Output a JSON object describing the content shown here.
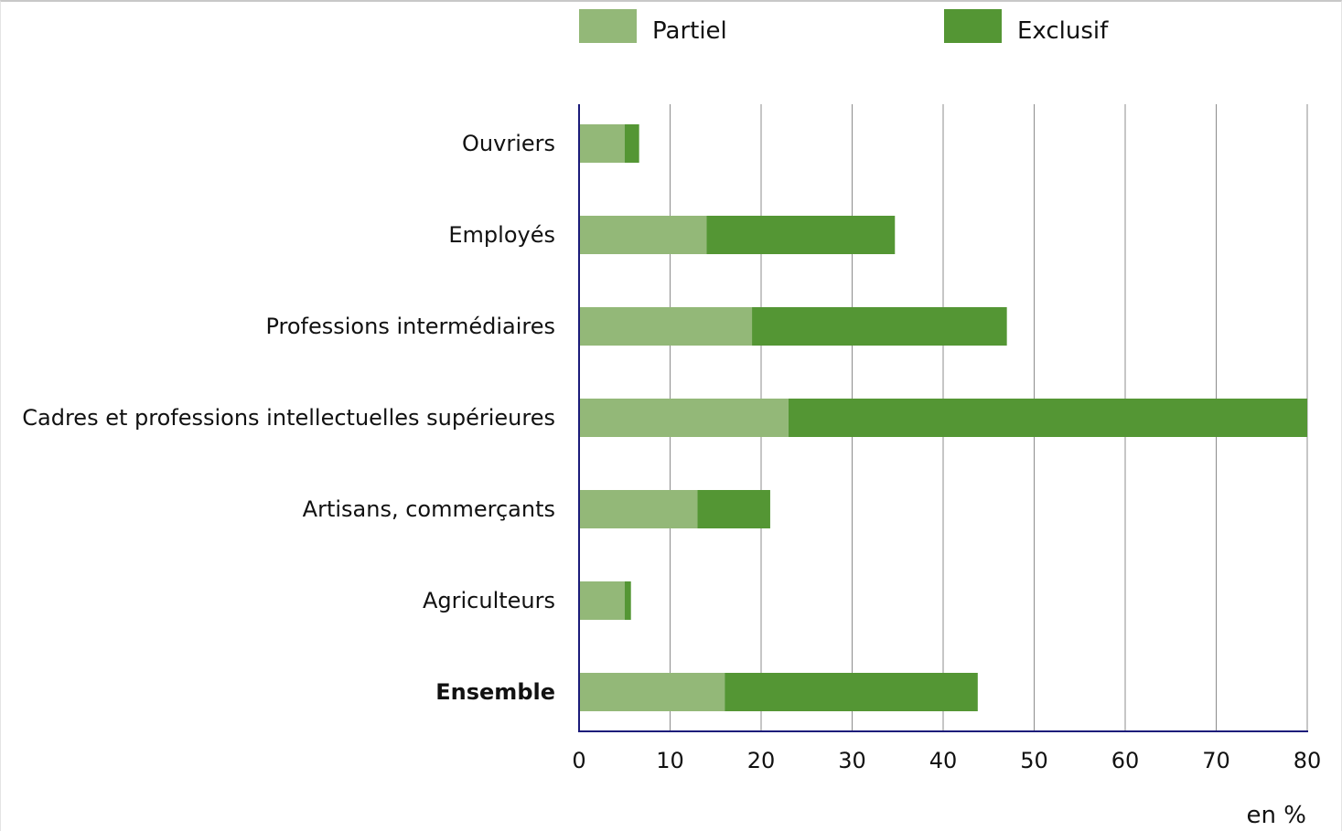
{
  "chart_data": {
    "type": "bar",
    "orientation": "horizontal",
    "stacked": true,
    "categories": [
      "Ouvriers",
      "Employés",
      "Professions intermédiaires",
      "Cadres et professions intellectuelles supérieures",
      "Artisans, commerçants",
      "Agriculteurs",
      "Ensemble"
    ],
    "bold_categories": [
      "Ensemble"
    ],
    "series": [
      {
        "name": "Partiel",
        "color": "#93b878",
        "values": [
          5,
          14,
          19,
          23,
          13,
          5,
          16
        ]
      },
      {
        "name": "Exclusif",
        "color": "#549634",
        "values": [
          1.6,
          20.7,
          28,
          57,
          8,
          0.7,
          27.8
        ]
      }
    ],
    "xlim": [
      0,
      80
    ],
    "xticks": [
      "0",
      "10",
      "20",
      "30",
      "40",
      "50",
      "60",
      "70",
      "80"
    ],
    "unit_label": "en %",
    "legend_position": "top",
    "grid": true,
    "colors": {
      "axis": "#1c1c7a",
      "grid": "#8c8c8c"
    }
  }
}
